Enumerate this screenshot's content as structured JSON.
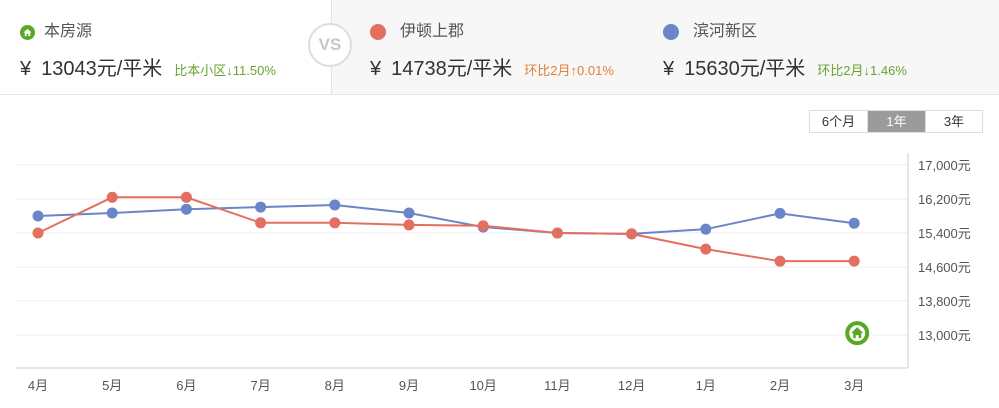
{
  "header": {
    "own": {
      "label": "本房源",
      "currency": "¥",
      "price": "13043元/平米",
      "change": "比本小区↓11.50%",
      "change_color": "#6aa232"
    },
    "vs_label": "VS",
    "compare": [
      {
        "label": "伊顿上郡",
        "color": "#e27060",
        "currency": "¥",
        "price": "14738元/平米",
        "change": "环比2月↑0.01%",
        "change_color": "#e2813a"
      },
      {
        "label": "滨河新区",
        "color": "#6a86c8",
        "currency": "¥",
        "price": "15630元/平米",
        "change": "环比2月↓1.46%",
        "change_color": "#6aa232"
      }
    ]
  },
  "range_tabs": [
    {
      "label": "6个月",
      "active": false
    },
    {
      "label": "1年",
      "active": true
    },
    {
      "label": "3年",
      "active": false
    }
  ],
  "chart_data": {
    "type": "line",
    "title": "",
    "xlabel": "",
    "ylabel": "",
    "categories": [
      "4月",
      "5月",
      "6月",
      "7月",
      "8月",
      "9月",
      "10月",
      "11月",
      "12月",
      "1月",
      "2月",
      "3月"
    ],
    "series": [
      {
        "name": "伊顿上郡",
        "color": "#e27060",
        "values": [
          15400,
          16240,
          16240,
          15640,
          15640,
          15590,
          15570,
          15400,
          15380,
          15020,
          14737,
          14738
        ]
      },
      {
        "name": "滨河新区",
        "color": "#6a86c8",
        "values": [
          15800,
          15870,
          15960,
          16010,
          16060,
          15870,
          15540,
          15400,
          15380,
          15490,
          15862,
          15630
        ]
      }
    ],
    "own_point": {
      "name": "本房源",
      "category": "3月",
      "value": 13043,
      "color": "#58a824"
    },
    "yticks": [
      "17,000元",
      "16,200元",
      "15,400元",
      "14,600元",
      "13,800元",
      "13,000元"
    ],
    "ytick_values": [
      17000,
      16200,
      15400,
      14600,
      13800,
      13000
    ],
    "ylim": [
      12200,
      17000
    ],
    "grid": true,
    "y_axis_position": "right",
    "legend_position": "header"
  }
}
